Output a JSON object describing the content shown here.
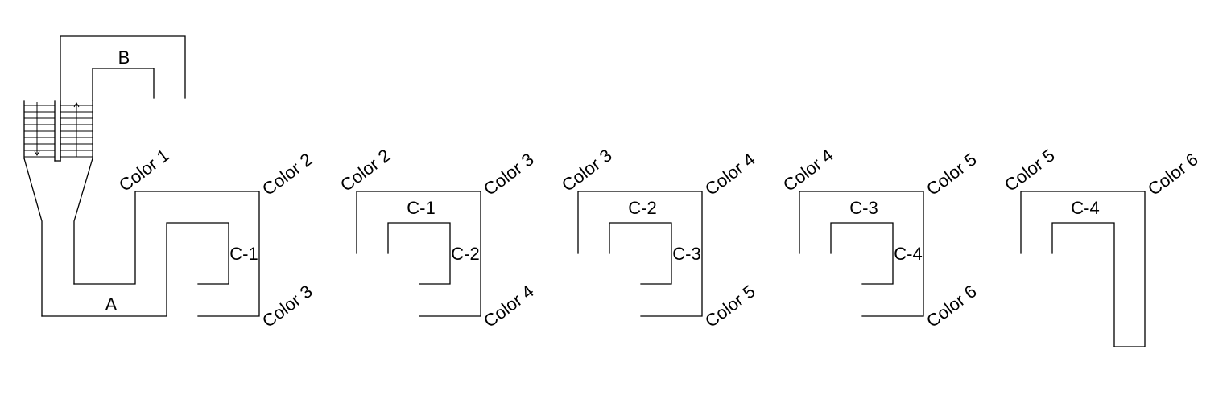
{
  "labels": {
    "a": "A",
    "b": "B"
  },
  "panels": [
    {
      "corner_top_left": "Color 1",
      "corner_top_right": "Color 2",
      "corner_bottom_right": "Color 3",
      "inner_label": "C-1"
    },
    {
      "corner_top_left": "Color 2",
      "corner_top_right": "Color 3",
      "corner_bottom_right": "Color 4",
      "top_label": "C-1",
      "inner_label": "C-2"
    },
    {
      "corner_top_left": "Color 3",
      "corner_top_right": "Color 4",
      "corner_bottom_right": "Color 5",
      "top_label": "C-2",
      "inner_label": "C-3"
    },
    {
      "corner_top_left": "Color 4",
      "corner_top_right": "Color 5",
      "corner_bottom_right": "Color 6",
      "top_label": "C-3",
      "inner_label": "C-4"
    },
    {
      "corner_top_left": "Color 5",
      "corner_top_right": "Color 6",
      "top_label": "C-4"
    }
  ]
}
